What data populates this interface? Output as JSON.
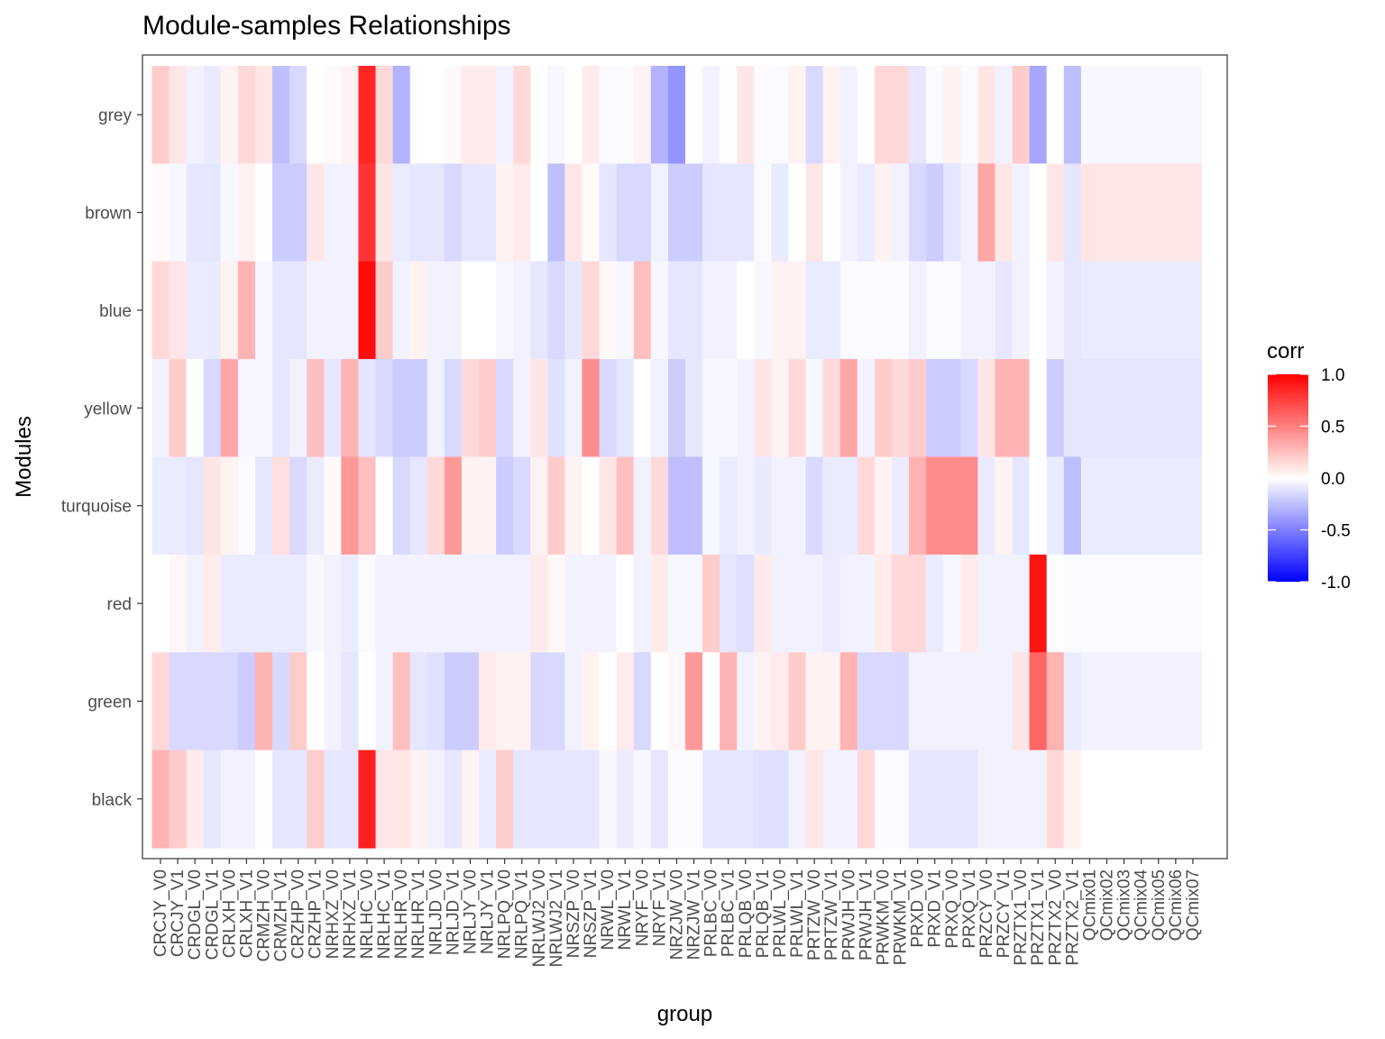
{
  "chart_data": {
    "type": "heatmap",
    "title": "Module-samples Relationships",
    "xlabel": "group",
    "ylabel": "Modules",
    "x": [
      "CRCJY_V0",
      "CRCJY_V1",
      "CRDGL_V0",
      "CRDGL_V1",
      "CRLXH_V0",
      "CRLXH_V1",
      "CRMZH_V0",
      "CRMZH_V1",
      "CRZHP_V0",
      "CRZHP_V1",
      "NRHXZ_V0",
      "NRHXZ_V1",
      "NRLHC_V0",
      "NRLHC_V1",
      "NRLHR_V0",
      "NRLHR_V1",
      "NRLJD_V0",
      "NRLJD_V1",
      "NRLJY_V0",
      "NRLJY_V1",
      "NRLPQ_V0",
      "NRLPQ_V1",
      "NRLWJ2_V0",
      "NRLWJ2_V1",
      "NRSZP_V0",
      "NRSZP_V1",
      "NRWL_V0",
      "NRWL_V1",
      "NRYF_V0",
      "NRYF_V1",
      "NRZJW_V0",
      "NRZJW_V1",
      "PRLBC_V0",
      "PRLBC_V1",
      "PRLQB_V0",
      "PRLQB_V1",
      "PRLWL_V0",
      "PRLWL_V1",
      "PRTZW_V0",
      "PRTZW_V1",
      "PRWJH_V0",
      "PRWJH_V1",
      "PRWKM_V0",
      "PRWKM_V1",
      "PRXD_V0",
      "PRXD_V1",
      "PRXQ_V0",
      "PRXQ_V1",
      "PRZCY_V0",
      "PRZCY_V1",
      "PRZTX1_V0",
      "PRZTX1_V1",
      "PRZTX2_V0",
      "PRZTX2_V1",
      "QCmix01",
      "QCmix02",
      "QCmix03",
      "QCmix04",
      "QCmix05",
      "QCmix06",
      "QCmix07"
    ],
    "y": [
      "grey",
      "brown",
      "blue",
      "yellow",
      "turquoise",
      "red",
      "green",
      "black"
    ],
    "values": [
      [
        0.2,
        0.1,
        -0.05,
        -0.08,
        0.05,
        0.15,
        0.1,
        -0.25,
        -0.15,
        0,
        0.02,
        0.05,
        0.85,
        0.15,
        -0.3,
        0,
        0,
        0.02,
        0.08,
        0.08,
        -0.05,
        0.15,
        0,
        -0.03,
        0,
        0.08,
        -0.02,
        -0.02,
        0.05,
        -0.3,
        -0.42,
        0,
        -0.05,
        0,
        0.1,
        -0.02,
        -0.02,
        0.05,
        -0.15,
        0.05,
        -0.05,
        0,
        0.15,
        0.15,
        -0.1,
        -0.02,
        0.05,
        -0.02,
        0.1,
        -0.05,
        0.2,
        -0.35,
        0,
        -0.25,
        -0.03,
        -0.03,
        -0.03,
        -0.03,
        -0.03,
        -0.03,
        -0.03
      ],
      [
        0.02,
        -0.03,
        -0.1,
        -0.1,
        -0.03,
        0.05,
        0,
        -0.2,
        -0.2,
        0.1,
        -0.05,
        -0.05,
        0.8,
        0.1,
        -0.08,
        -0.1,
        -0.1,
        -0.15,
        -0.1,
        -0.1,
        0.05,
        0.08,
        0,
        -0.25,
        0.1,
        0.02,
        -0.1,
        -0.15,
        -0.15,
        -0.05,
        -0.2,
        -0.2,
        -0.1,
        -0.1,
        -0.1,
        -0.02,
        -0.08,
        0,
        0.1,
        0,
        -0.05,
        -0.08,
        0.05,
        -0.05,
        -0.15,
        -0.2,
        -0.1,
        -0.05,
        0.35,
        0.1,
        -0.05,
        0,
        0.1,
        -0.1,
        0.1,
        0.1,
        0.1,
        0.1,
        0.1,
        0.1,
        0.1
      ],
      [
        0.15,
        0.1,
        -0.08,
        -0.08,
        0.05,
        0.3,
        -0.03,
        -0.1,
        -0.1,
        -0.05,
        -0.05,
        -0.05,
        0.95,
        0.2,
        -0.05,
        0.05,
        -0.05,
        -0.05,
        0,
        0,
        -0.03,
        -0.05,
        -0.1,
        -0.15,
        -0.1,
        0.15,
        0.02,
        -0.03,
        0.25,
        -0.03,
        -0.1,
        -0.1,
        -0.05,
        -0.05,
        0,
        -0.03,
        0.05,
        0.05,
        -0.08,
        -0.08,
        -0.02,
        -0.02,
        -0.02,
        -0.02,
        -0.05,
        -0.02,
        -0.02,
        -0.05,
        -0.05,
        -0.1,
        -0.05,
        0,
        -0.05,
        -0.1,
        -0.08,
        -0.08,
        -0.08,
        -0.08,
        -0.08,
        -0.08,
        -0.08
      ],
      [
        -0.05,
        0.2,
        0,
        -0.15,
        0.35,
        -0.03,
        -0.03,
        -0.1,
        -0.05,
        0.25,
        -0.1,
        0.3,
        -0.1,
        -0.15,
        -0.2,
        -0.2,
        -0.05,
        -0.15,
        0.15,
        0.2,
        -0.15,
        -0.05,
        0.1,
        -0.12,
        -0.05,
        0.45,
        -0.15,
        -0.1,
        0,
        -0.05,
        -0.2,
        -0.1,
        -0.03,
        -0.03,
        -0.05,
        0.1,
        0.05,
        0.15,
        -0.03,
        0.15,
        0.35,
        -0.05,
        0.2,
        0.15,
        0.2,
        -0.2,
        -0.2,
        -0.15,
        0.1,
        0.3,
        0.3,
        0,
        -0.2,
        -0.1,
        -0.1,
        -0.1,
        -0.1,
        -0.1,
        -0.1,
        -0.1,
        -0.1
      ],
      [
        -0.08,
        -0.08,
        -0.1,
        0.1,
        0.05,
        -0.02,
        -0.1,
        0.12,
        -0.15,
        -0.08,
        0.02,
        0.4,
        0.25,
        0,
        -0.15,
        -0.1,
        0.15,
        0.4,
        0.05,
        0.05,
        -0.2,
        -0.15,
        0.05,
        0.2,
        0.05,
        0,
        0.1,
        0.25,
        -0.05,
        0.15,
        -0.25,
        -0.25,
        -0.03,
        -0.08,
        -0.05,
        -0.08,
        -0.05,
        -0.05,
        -0.15,
        -0.08,
        -0.08,
        0.15,
        0.05,
        -0.08,
        0.3,
        0.45,
        0.45,
        0.45,
        -0.08,
        0.05,
        -0.1,
        0,
        -0.08,
        -0.25,
        -0.08,
        -0.08,
        -0.08,
        -0.08,
        -0.08,
        -0.08,
        -0.08
      ],
      [
        0,
        0.03,
        -0.05,
        0.07,
        -0.08,
        -0.08,
        -0.08,
        -0.08,
        -0.08,
        -0.03,
        -0.05,
        -0.08,
        -0.02,
        -0.05,
        -0.05,
        -0.05,
        -0.05,
        -0.05,
        -0.05,
        -0.05,
        -0.05,
        -0.05,
        0.08,
        0.03,
        -0.05,
        -0.05,
        -0.05,
        0,
        -0.05,
        0.08,
        -0.03,
        -0.03,
        0.2,
        -0.1,
        -0.12,
        0.08,
        -0.05,
        -0.05,
        -0.05,
        -0.08,
        -0.05,
        -0.05,
        0.08,
        0.15,
        0.15,
        -0.08,
        -0.03,
        0.08,
        -0.05,
        -0.05,
        -0.05,
        0.92,
        0,
        -0.02,
        -0.02,
        -0.02,
        -0.02,
        -0.02,
        -0.02,
        -0.02,
        -0.02
      ],
      [
        0.15,
        -0.15,
        -0.15,
        -0.15,
        -0.15,
        -0.2,
        0.3,
        -0.15,
        0.2,
        0,
        -0.05,
        -0.1,
        0,
        -0.05,
        0.25,
        -0.1,
        -0.12,
        -0.2,
        -0.2,
        0.08,
        0.05,
        0.05,
        -0.15,
        -0.15,
        -0.05,
        0.05,
        0,
        0.08,
        -0.15,
        0,
        0.03,
        0.4,
        0,
        0.3,
        -0.05,
        0.05,
        0.08,
        0.2,
        0.05,
        0.05,
        0.3,
        -0.15,
        -0.15,
        -0.15,
        -0.05,
        -0.05,
        -0.05,
        -0.05,
        -0.05,
        -0.05,
        0.1,
        0.6,
        0.3,
        -0.08,
        -0.05,
        -0.05,
        -0.05,
        -0.05,
        -0.05,
        -0.05,
        -0.05
      ],
      [
        0.3,
        0.2,
        0.08,
        -0.1,
        -0.05,
        -0.05,
        0,
        -0.1,
        -0.1,
        0.2,
        -0.1,
        -0.1,
        0.88,
        0.1,
        0.1,
        0.05,
        -0.05,
        -0.1,
        0.05,
        -0.08,
        0.2,
        -0.1,
        -0.1,
        -0.1,
        -0.1,
        -0.1,
        -0.03,
        -0.08,
        -0.03,
        -0.1,
        -0.02,
        -0.02,
        -0.1,
        -0.1,
        -0.1,
        -0.12,
        -0.12,
        -0.05,
        0.1,
        -0.05,
        -0.05,
        0.15,
        -0.02,
        -0.02,
        -0.1,
        -0.1,
        -0.1,
        -0.1,
        -0.05,
        -0.05,
        -0.05,
        -0.05,
        0.15,
        0.05,
        0,
        0,
        0,
        0,
        0,
        0,
        0
      ]
    ],
    "zlim": [
      -1,
      1
    ],
    "legend": {
      "title": "corr",
      "ticks": [
        "1.0",
        "0.5",
        "0.0",
        "-0.5",
        "-1.0"
      ],
      "placement": "right"
    },
    "grid": false
  }
}
